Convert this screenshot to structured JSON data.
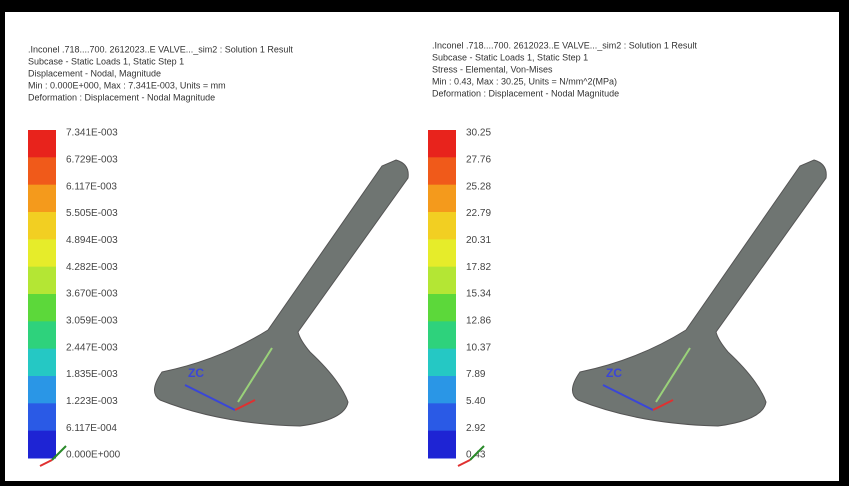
{
  "panels": [
    {
      "header": [
        ".Inconel .718....700. 2612023..E VALVE..._sim2 : Solution 1 Result",
        "Subcase - Static Loads 1, Static Step 1",
        "Displacement - Nodal, Magnitude",
        "Min : 0.000E+000, Max : 7.341E-003, Units = mm",
        "Deformation : Displacement - Nodal Magnitude"
      ],
      "legend": [
        "7.341E-003",
        "6.729E-003",
        "6.117E-003",
        "5.505E-003",
        "4.894E-003",
        "4.282E-003",
        "3.670E-003",
        "3.059E-003",
        "2.447E-003",
        "1.835E-003",
        "1.223E-003",
        "6.117E-004",
        "0.000E+000"
      ],
      "triad_label": "ZC"
    },
    {
      "header": [
        ".Inconel .718....700. 2612023..E VALVE..._sim2 : Solution 1 Result",
        "Subcase - Static Loads 1, Static Step 1",
        "Stress - Elemental, Von-Mises",
        "Min : 0.43, Max : 30.25, Units = N/mm^2(MPa)",
        "Deformation : Displacement - Nodal Magnitude"
      ],
      "legend": [
        "30.25",
        "27.76",
        "25.28",
        "22.79",
        "20.31",
        "17.82",
        "15.34",
        "12.86",
        "10.37",
        "7.89",
        "5.40",
        "2.92",
        "0.43"
      ],
      "triad_label": "ZC"
    }
  ]
}
